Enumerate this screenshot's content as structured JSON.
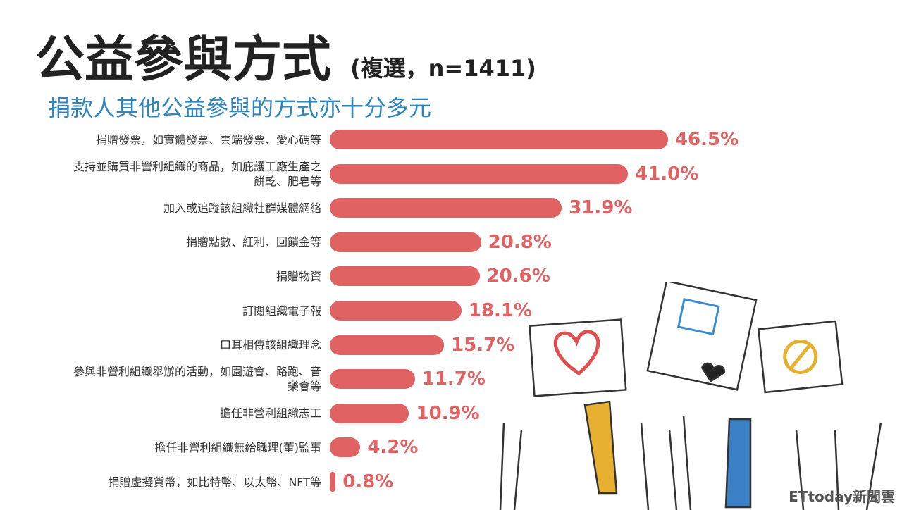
{
  "chart_data": {
    "type": "bar",
    "orientation": "horizontal",
    "title": "公益參與方式",
    "title_note": "(複選，n=1411)",
    "subtitle": "捐款人其他公益參與的方式亦十分多元",
    "categories": [
      "捐贈發票，如實體發票、雲端發票、愛心碼等",
      "支持並購買非營利組織的商品，如庇護工廠生產之餅乾、肥皂等",
      "加入或追蹤該組織社群媒體網絡",
      "捐贈點數、紅利、回饋金等",
      "捐贈物資",
      "訂閱組織電子報",
      "口耳相傳該組織理念",
      "參與非營利組織舉辦的活動，如園遊會、路跑、音樂會等",
      "擔任非營利組織志工",
      "擔任非營利組織無給職理(董)監事",
      "捐贈虛擬貨幣，如比特幣、以太幣、NFT等"
    ],
    "values": [
      46.5,
      41.0,
      31.9,
      20.8,
      20.6,
      18.1,
      15.7,
      11.7,
      10.9,
      4.2,
      0.8
    ],
    "value_labels": [
      "46.5%",
      "41.0%",
      "31.9%",
      "20.8%",
      "20.6%",
      "18.1%",
      "15.7%",
      "11.7%",
      "10.9%",
      "4.2%",
      "0.8%"
    ],
    "color": "#e06262",
    "source": "ETtoday新聞雲"
  }
}
